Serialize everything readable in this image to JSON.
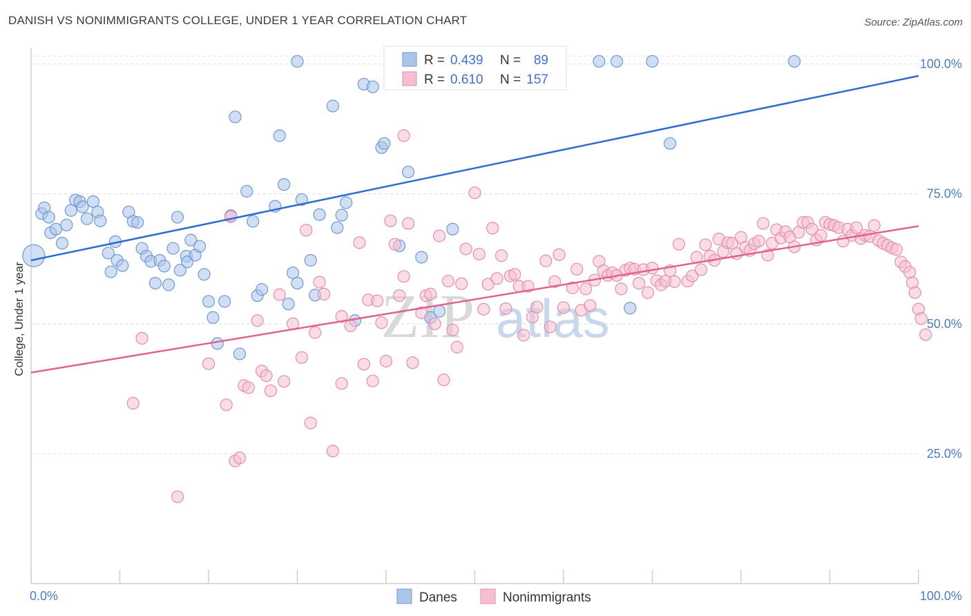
{
  "title": "DANISH VS NONIMMIGRANTS COLLEGE, UNDER 1 YEAR CORRELATION CHART",
  "source": "Source: ZipAtlas.com",
  "watermark": {
    "zip": "ZIP",
    "atlas": "atlas"
  },
  "chart_data": {
    "type": "scatter",
    "xlabel": "",
    "ylabel": "College, Under 1 year",
    "xlim": [
      0,
      100
    ],
    "ylim": [
      0,
      103
    ],
    "x_tick_labels": [
      "0.0%",
      "100.0%"
    ],
    "y_ticks": [
      {
        "value": 25,
        "label": "25.0%"
      },
      {
        "value": 50,
        "label": "50.0%"
      },
      {
        "value": 75,
        "label": "75.0%"
      },
      {
        "value": 100,
        "label": "100.0%"
      }
    ],
    "legend_stats": [
      {
        "r_label": "R =",
        "r": "0.439",
        "n_label": "N =",
        "n": "89"
      },
      {
        "r_label": "R =",
        "r": "0.610",
        "n_label": "N =",
        "n": "157"
      }
    ],
    "series": [
      {
        "name": "Danes",
        "color": "#aac4ea",
        "stroke": "#6f98d8",
        "line_color": "#2a6ccf",
        "trend": [
          [
            0,
            62.2
          ],
          [
            100,
            97.7
          ]
        ],
        "points": [
          [
            0.3,
            63.1,
            "big"
          ],
          [
            1.2,
            71.2
          ],
          [
            1.5,
            72.3
          ],
          [
            2,
            70.5
          ],
          [
            2.2,
            67.5
          ],
          [
            2.8,
            68.2
          ],
          [
            3.5,
            65.5
          ],
          [
            4,
            69
          ],
          [
            4.5,
            71.8
          ],
          [
            5,
            73.8
          ],
          [
            5.5,
            73.5
          ],
          [
            5.8,
            72.5
          ],
          [
            6.3,
            70.2
          ],
          [
            7,
            73.5
          ],
          [
            7.5,
            71.5
          ],
          [
            7.8,
            69.8
          ],
          [
            8.7,
            63.6
          ],
          [
            9,
            60
          ],
          [
            9.5,
            65.8
          ],
          [
            9.7,
            62.2
          ],
          [
            10.3,
            61.2
          ],
          [
            11,
            71.5
          ],
          [
            11.5,
            69.7
          ],
          [
            12,
            69.5
          ],
          [
            12.5,
            64.5
          ],
          [
            13,
            63
          ],
          [
            13.5,
            62
          ],
          [
            14,
            57.8
          ],
          [
            14.5,
            62.2
          ],
          [
            15,
            61.1
          ],
          [
            15.5,
            57.5
          ],
          [
            16,
            64.5
          ],
          [
            16.5,
            70.5
          ],
          [
            16.8,
            60.3
          ],
          [
            17.5,
            63
          ],
          [
            17.6,
            61.9
          ],
          [
            18,
            66.1
          ],
          [
            18.5,
            63.2
          ],
          [
            19,
            64.9
          ],
          [
            19.5,
            59.5
          ],
          [
            20,
            54.3
          ],
          [
            20.5,
            51.2
          ],
          [
            21,
            46.2
          ],
          [
            21.8,
            54.3
          ],
          [
            22.5,
            70.8
          ],
          [
            23,
            89.8
          ],
          [
            23.5,
            44.2
          ],
          [
            24.3,
            75.5
          ],
          [
            25,
            69.7
          ],
          [
            25.5,
            55.4
          ],
          [
            26,
            56.6
          ],
          [
            27.5,
            72.6
          ],
          [
            28,
            86.2
          ],
          [
            28.5,
            76.8
          ],
          [
            29,
            53.8
          ],
          [
            29.5,
            59.8
          ],
          [
            30,
            57.8
          ],
          [
            30.5,
            73.9
          ],
          [
            31.5,
            62.2
          ],
          [
            32,
            55.5
          ],
          [
            32.5,
            71
          ],
          [
            34,
            91.9
          ],
          [
            34.5,
            68.5
          ],
          [
            35,
            70.9
          ],
          [
            35.5,
            73.3
          ],
          [
            36.5,
            50.6
          ],
          [
            37.5,
            96.1
          ],
          [
            38.5,
            95.6
          ],
          [
            39.5,
            83.9
          ],
          [
            39.8,
            84.7
          ],
          [
            41.5,
            65
          ],
          [
            42.5,
            79.2
          ],
          [
            44,
            62.8
          ],
          [
            45,
            51.2
          ],
          [
            46,
            52.4
          ],
          [
            47.5,
            68.2
          ],
          [
            48,
            100.5
          ],
          [
            49,
            100.5
          ],
          [
            50.5,
            100.5
          ],
          [
            51.5,
            100.5
          ],
          [
            64,
            100.5
          ],
          [
            66,
            100.5
          ],
          [
            67.5,
            53
          ],
          [
            70,
            100.5
          ],
          [
            72,
            84.7
          ],
          [
            86,
            100.5
          ],
          [
            30,
            100.5
          ]
        ]
      },
      {
        "name": "Nonimmigrants",
        "color": "#f6bfd1",
        "stroke": "#e58eac",
        "line_color": "#e0628d",
        "trend": [
          [
            0,
            40.6
          ],
          [
            100,
            68.8
          ]
        ],
        "points": [
          [
            11.5,
            34.7
          ],
          [
            12.5,
            47.2
          ],
          [
            16.5,
            16.7
          ],
          [
            20,
            42.3
          ],
          [
            22,
            34.4
          ],
          [
            22.5,
            70.6
          ],
          [
            23,
            23.6
          ],
          [
            23.5,
            24.2
          ],
          [
            24,
            38.1
          ],
          [
            24.5,
            37.7
          ],
          [
            25.5,
            50.6
          ],
          [
            26,
            40.9
          ],
          [
            26.5,
            40
          ],
          [
            27,
            37.1
          ],
          [
            28,
            55.6
          ],
          [
            28.5,
            38.9
          ],
          [
            29.5,
            50
          ],
          [
            30.5,
            43.5
          ],
          [
            31,
            68
          ],
          [
            31.5,
            30.9
          ],
          [
            32,
            48.3
          ],
          [
            32.5,
            58
          ],
          [
            33,
            55.7
          ],
          [
            34,
            25.5
          ],
          [
            35,
            51.4
          ],
          [
            36,
            49.6
          ],
          [
            37,
            65.6
          ],
          [
            37.5,
            42.2
          ],
          [
            38,
            54.6
          ],
          [
            38.5,
            39
          ],
          [
            39,
            54.4
          ],
          [
            39.5,
            50.2
          ],
          [
            40.5,
            69.8
          ],
          [
            41,
            65.3
          ],
          [
            41.5,
            55.4
          ],
          [
            42,
            59.1
          ],
          [
            42.5,
            69.3
          ],
          [
            43,
            42.5
          ],
          [
            44,
            52.1
          ],
          [
            44.5,
            55.4
          ],
          [
            45,
            55.7
          ],
          [
            45.5,
            50
          ],
          [
            46,
            66.9
          ],
          [
            46.5,
            39.2
          ],
          [
            47,
            58.2
          ],
          [
            47.5,
            48.8
          ],
          [
            48,
            45.5
          ],
          [
            48.5,
            57.7
          ],
          [
            49,
            64.4
          ],
          [
            50,
            75.2
          ],
          [
            50.5,
            63.4
          ],
          [
            51,
            52.8
          ],
          [
            51.5,
            57.6
          ],
          [
            52,
            68.4
          ],
          [
            52.5,
            58.7
          ],
          [
            53,
            63.1
          ],
          [
            53.5,
            52.9
          ],
          [
            54,
            59.2
          ],
          [
            54.5,
            59.5
          ],
          [
            55,
            57.2
          ],
          [
            55.5,
            47.8
          ],
          [
            56,
            57.2
          ],
          [
            56.5,
            51.3
          ],
          [
            57,
            53.2
          ],
          [
            58,
            62.1
          ],
          [
            58.5,
            49.4
          ],
          [
            59,
            58.1
          ],
          [
            59.5,
            63.3
          ],
          [
            60,
            53.1
          ],
          [
            61,
            56.9
          ],
          [
            61.5,
            60.5
          ],
          [
            62,
            52.6
          ],
          [
            62.5,
            56.7
          ],
          [
            63,
            53.5
          ],
          [
            63.5,
            58.4
          ],
          [
            64,
            62
          ],
          [
            64.5,
            60.2
          ],
          [
            65,
            59.3
          ],
          [
            65.5,
            59.8
          ],
          [
            66,
            59.3
          ],
          [
            66.5,
            56.7
          ],
          [
            67,
            60.3
          ],
          [
            67.5,
            60.7
          ],
          [
            68,
            60.5
          ],
          [
            68.5,
            57.8
          ],
          [
            69,
            60.4
          ],
          [
            69.5,
            56
          ],
          [
            70,
            60.7
          ],
          [
            70.5,
            58.3
          ],
          [
            71,
            57.5
          ],
          [
            71.5,
            58.2
          ],
          [
            72,
            60.2
          ],
          [
            72.5,
            58.1
          ],
          [
            73,
            65.3
          ],
          [
            74,
            58.2
          ],
          [
            74.5,
            59.2
          ],
          [
            75,
            62.8
          ],
          [
            75.5,
            60.4
          ],
          [
            76,
            65.2
          ],
          [
            76.5,
            63
          ],
          [
            77,
            62.2
          ],
          [
            77.5,
            66.3
          ],
          [
            78,
            63.9
          ],
          [
            78.5,
            65.6
          ],
          [
            79,
            65.5
          ],
          [
            79.5,
            63.5
          ],
          [
            80,
            66.6
          ],
          [
            80.5,
            64.7
          ],
          [
            81,
            64.1
          ],
          [
            81.5,
            65.4
          ],
          [
            82,
            65.9
          ],
          [
            82.5,
            69.3
          ],
          [
            83,
            63.2
          ],
          [
            83.5,
            65.5
          ],
          [
            84,
            68.1
          ],
          [
            84.5,
            66.5
          ],
          [
            85,
            67.7
          ],
          [
            85.5,
            66.7
          ],
          [
            86,
            64.8
          ],
          [
            86.5,
            67.6
          ],
          [
            87,
            69.5
          ],
          [
            87.5,
            69.5
          ],
          [
            88,
            68.2
          ],
          [
            88.5,
            66.1
          ],
          [
            89,
            67
          ],
          [
            89.5,
            69.5
          ],
          [
            90,
            69.1
          ],
          [
            90.5,
            68.9
          ],
          [
            91,
            68.5
          ],
          [
            91.5,
            65.9
          ],
          [
            92,
            68.2
          ],
          [
            92.5,
            67
          ],
          [
            93,
            68.5
          ],
          [
            93.5,
            66.4
          ],
          [
            94,
            67
          ],
          [
            94.5,
            66.8
          ],
          [
            95,
            68.9
          ],
          [
            95.5,
            66
          ],
          [
            96,
            65.5
          ],
          [
            96.5,
            65.1
          ],
          [
            97,
            64.6
          ],
          [
            97.5,
            64.3
          ],
          [
            98,
            61.9
          ],
          [
            98.5,
            61
          ],
          [
            99,
            59.9
          ],
          [
            99.3,
            57.9
          ],
          [
            99.6,
            56
          ],
          [
            100,
            52.8
          ],
          [
            100.3,
            51
          ],
          [
            100.8,
            47.9
          ],
          [
            35,
            38.5
          ],
          [
            40,
            42.8
          ],
          [
            42,
            86.2
          ]
        ]
      }
    ]
  }
}
